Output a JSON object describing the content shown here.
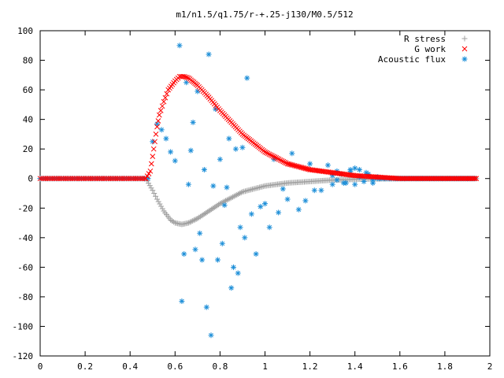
{
  "chart_data": {
    "type": "scatter",
    "title": "m1/n1.5/q1.75/r-+.25-j130/M0.5/512",
    "xlabel": "",
    "ylabel": "",
    "xlim": [
      0,
      2
    ],
    "ylim": [
      -120,
      100
    ],
    "xticks": [
      "0",
      "0.2",
      "0.4",
      "0.6",
      "0.8",
      "1",
      "1.2",
      "1.4",
      "1.6",
      "1.8",
      "2"
    ],
    "yticks": [
      "100",
      "80",
      "60",
      "40",
      "20",
      "0",
      "-20",
      "-40",
      "-60",
      "-80",
      "-100",
      "-120"
    ],
    "grid": false,
    "legend_position": "top-right",
    "series": [
      {
        "name": "R stress",
        "marker": "plus",
        "color": "#a0a0a0",
        "x": [
          0.0,
          0.1,
          0.2,
          0.3,
          0.4,
          0.47,
          0.5,
          0.52,
          0.55,
          0.58,
          0.6,
          0.63,
          0.66,
          0.7,
          0.75,
          0.8,
          0.85,
          0.9,
          0.95,
          1.0,
          1.05,
          1.1,
          1.15,
          1.2,
          1.25,
          1.3,
          1.35,
          1.4,
          1.45,
          1.5,
          1.6,
          1.7,
          1.8,
          1.9,
          1.94
        ],
        "y": [
          0,
          0,
          0,
          0,
          0,
          0,
          -8,
          -14,
          -22,
          -28,
          -30,
          -31,
          -30,
          -27,
          -22,
          -17,
          -13,
          -9,
          -7,
          -5,
          -4,
          -3,
          -2.5,
          -2,
          -1.5,
          -1,
          -0.8,
          -0.5,
          -0.3,
          -0.2,
          0,
          0,
          0,
          0,
          0
        ]
      },
      {
        "name": "G work",
        "marker": "cross",
        "color": "#ff0000",
        "x": [
          0.0,
          0.1,
          0.2,
          0.3,
          0.4,
          0.47,
          0.49,
          0.5,
          0.51,
          0.52,
          0.53,
          0.55,
          0.57,
          0.6,
          0.62,
          0.64,
          0.66,
          0.7,
          0.75,
          0.8,
          0.85,
          0.9,
          0.95,
          1.0,
          1.05,
          1.1,
          1.15,
          1.2,
          1.25,
          1.3,
          1.35,
          1.4,
          1.45,
          1.5,
          1.55,
          1.6,
          1.7,
          1.8,
          1.9,
          1.94
        ],
        "y": [
          0,
          0,
          0,
          0,
          0,
          0,
          5,
          15,
          25,
          35,
          43,
          52,
          60,
          66,
          69,
          69,
          68,
          63,
          55,
          46,
          38,
          30,
          24,
          18,
          14,
          10,
          8,
          6,
          5,
          4,
          3,
          2,
          1.5,
          1,
          0.5,
          0,
          0,
          0,
          0,
          0
        ]
      },
      {
        "name": "Acoustic flux",
        "marker": "star",
        "color": "#1e8fd8",
        "x": [
          0.0,
          0.05,
          0.1,
          0.15,
          0.2,
          0.25,
          0.3,
          0.35,
          0.4,
          0.45,
          0.48,
          0.5,
          0.52,
          0.54,
          0.56,
          0.58,
          0.6,
          0.62,
          0.63,
          0.64,
          0.65,
          0.66,
          0.67,
          0.68,
          0.69,
          0.7,
          0.71,
          0.72,
          0.73,
          0.74,
          0.75,
          0.76,
          0.77,
          0.78,
          0.79,
          0.8,
          0.81,
          0.82,
          0.83,
          0.84,
          0.85,
          0.86,
          0.87,
          0.88,
          0.89,
          0.9,
          0.91,
          0.92,
          0.94,
          0.96,
          0.98,
          1.0,
          1.02,
          1.04,
          1.06,
          1.08,
          1.1,
          1.12,
          1.15,
          1.18,
          1.2,
          1.22,
          1.25,
          1.28,
          1.3,
          1.32,
          1.35,
          1.38,
          1.4,
          1.42,
          1.45,
          1.48,
          1.5,
          1.55,
          1.6,
          1.7,
          1.8,
          1.9,
          1.94
        ],
        "y": [
          0,
          0,
          0,
          0,
          0,
          0,
          0,
          0,
          0,
          0,
          0,
          25,
          37,
          33,
          27,
          18,
          12,
          90,
          -83,
          -51,
          65,
          -4,
          19,
          38,
          -48,
          59,
          -37,
          -55,
          6,
          -87,
          84,
          -106,
          -5,
          47,
          -55,
          13,
          -44,
          -18,
          -6,
          27,
          -74,
          -60,
          20,
          -64,
          -33,
          21,
          -40,
          68,
          -24,
          -51,
          -19,
          -17,
          -33,
          13,
          -23,
          -7,
          -14,
          17,
          -21,
          -15,
          10,
          -8,
          -8,
          9,
          -4,
          5,
          -3,
          6,
          7,
          1,
          4,
          -3,
          3,
          2,
          1,
          0,
          0,
          0,
          0
        ]
      }
    ]
  }
}
